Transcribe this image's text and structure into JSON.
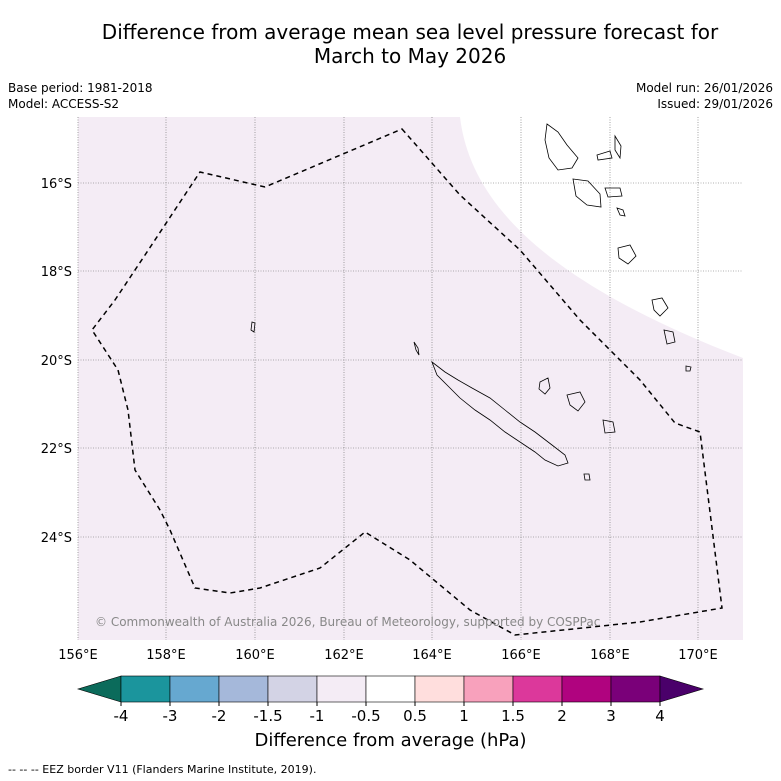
{
  "title": {
    "line1": "Difference from average mean sea level pressure forecast for",
    "line2": "March to May 2026"
  },
  "meta": {
    "base_period": "Base period: 1981-2018",
    "model": "Model: ACCESS-S2",
    "model_run": "Model run: 26/01/2026",
    "issued": "Issued: 29/01/2026"
  },
  "map": {
    "lat_labels": [
      "16°S",
      "18°S",
      "20°S",
      "22°S",
      "24°S"
    ],
    "lon_labels": [
      "156°E",
      "158°E",
      "160°E",
      "162°E",
      "164°E",
      "166°E",
      "168°E",
      "170°E"
    ],
    "copyright": "© Commonwealth of Australia 2026, Bureau of Meteorology, supported by COSPPac",
    "colors": {
      "field_fill": "#f4ecf5",
      "neutral_fill": "#ffffff"
    }
  },
  "colorbar": {
    "ticks": [
      "-4",
      "-3",
      "-2",
      "-1.5",
      "-1",
      "-0.5",
      "0.5",
      "1",
      "1.5",
      "2",
      "3",
      "4"
    ],
    "colors": [
      "#0b6b5b",
      "#1b959d",
      "#66a8d0",
      "#a5b8da",
      "#d3d3e5",
      "#f4ecf5",
      "#ffffff",
      "#ffdedd",
      "#f8a1bc",
      "#dc389b",
      "#b0037f",
      "#7a0079",
      "#4a006a"
    ],
    "title": "Difference from average (hPa)"
  },
  "footer": "--  --  -- EEZ border V11 (Flanders Marine Institute, 2019)."
}
